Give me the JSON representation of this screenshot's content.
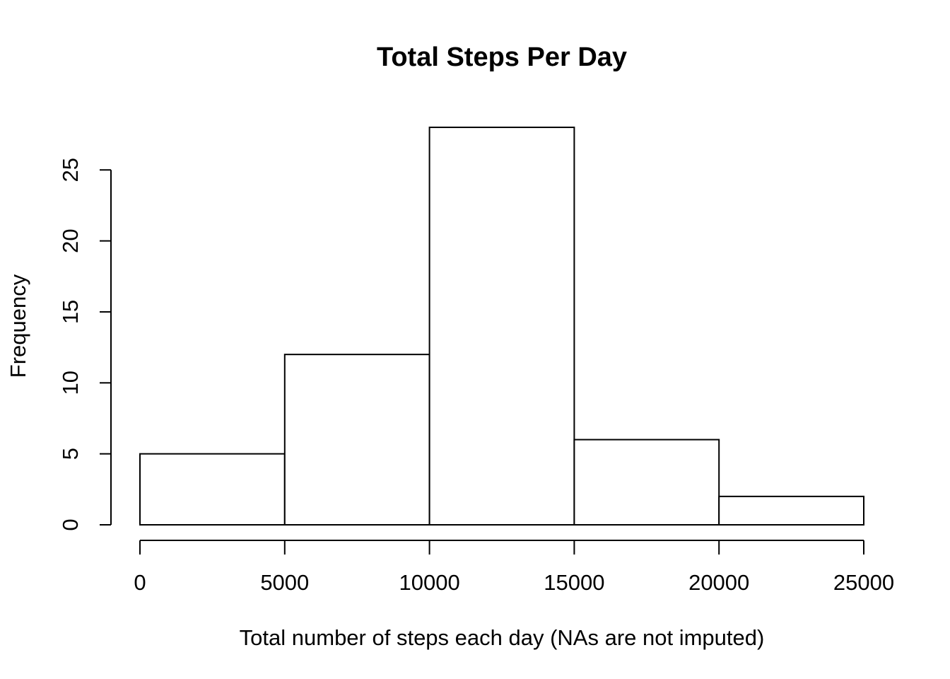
{
  "chart_data": {
    "type": "bar",
    "title": "Total Steps Per Day",
    "xlabel": "Total number of steps each day (NAs are not imputed)",
    "ylabel": "Frequency",
    "bins": [
      {
        "from": 0,
        "to": 5000,
        "count": 5
      },
      {
        "from": 5000,
        "to": 10000,
        "count": 12
      },
      {
        "from": 10000,
        "to": 15000,
        "count": 28
      },
      {
        "from": 15000,
        "to": 20000,
        "count": 6
      },
      {
        "from": 20000,
        "to": 25000,
        "count": 2
      }
    ],
    "xticks": [
      0,
      5000,
      10000,
      15000,
      20000,
      25000
    ],
    "yticks": [
      0,
      5,
      10,
      15,
      20,
      25
    ],
    "xlim": [
      0,
      25000
    ],
    "ylim": [
      0,
      28
    ],
    "grid": false,
    "colors": {
      "bar_fill": "#ffffff",
      "bar_stroke": "#000000"
    }
  }
}
